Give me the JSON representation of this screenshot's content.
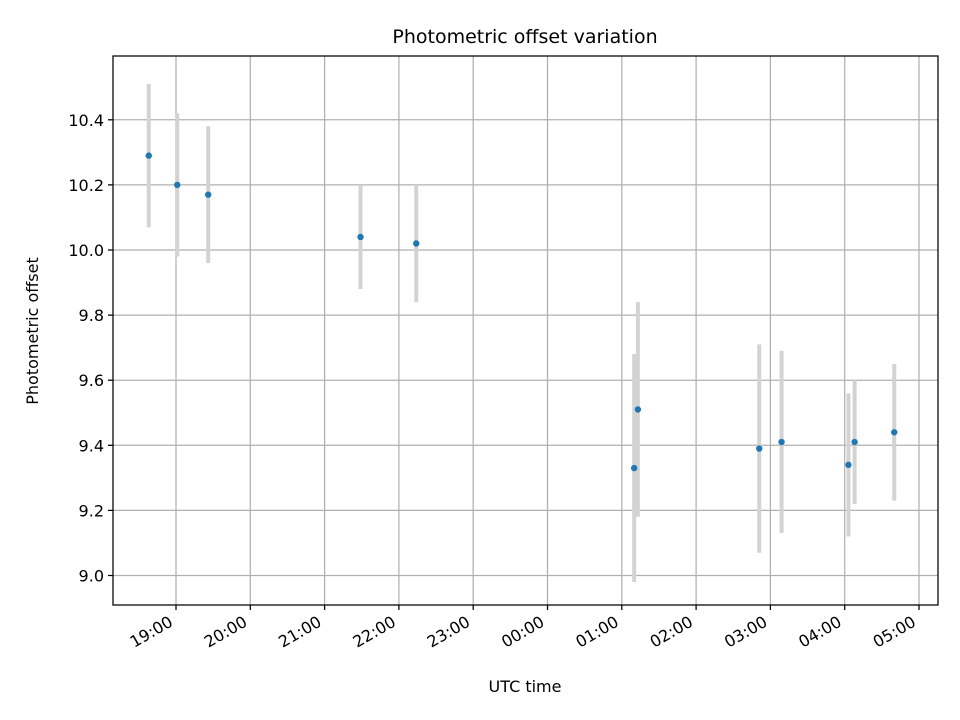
{
  "chart_data": {
    "type": "scatter",
    "title": "Photometric offset variation",
    "xlabel": "UTC time",
    "ylabel": "Photometric offset",
    "x_ticks": [
      "19:00",
      "20:00",
      "21:00",
      "22:00",
      "23:00",
      "00:00",
      "01:00",
      "02:00",
      "03:00",
      "04:00",
      "05:00"
    ],
    "y_ticks": [
      "9.0",
      "9.2",
      "9.4",
      "9.6",
      "9.8",
      "10.0",
      "10.2",
      "10.4"
    ],
    "grid": true,
    "marker_color": "#1f77b4",
    "errorbar_color": "#d3d3d3",
    "points": [
      {
        "x": "18:38",
        "y": 10.29,
        "err": 0.22
      },
      {
        "x": "19:01",
        "y": 10.2,
        "err": 0.22
      },
      {
        "x": "19:26",
        "y": 10.17,
        "err": 0.21
      },
      {
        "x": "21:29",
        "y": 10.04,
        "err": 0.16
      },
      {
        "x": "22:14",
        "y": 10.02,
        "err": 0.18
      },
      {
        "x": "01:10",
        "y": 9.33,
        "err": 0.35
      },
      {
        "x": "01:13",
        "y": 9.51,
        "err": 0.33
      },
      {
        "x": "02:51",
        "y": 9.39,
        "err": 0.32
      },
      {
        "x": "03:09",
        "y": 9.41,
        "err": 0.28
      },
      {
        "x": "04:03",
        "y": 9.34,
        "err": 0.22
      },
      {
        "x": "04:08",
        "y": 9.41,
        "err": 0.19
      },
      {
        "x": "04:40",
        "y": 9.44,
        "err": 0.21
      }
    ]
  }
}
